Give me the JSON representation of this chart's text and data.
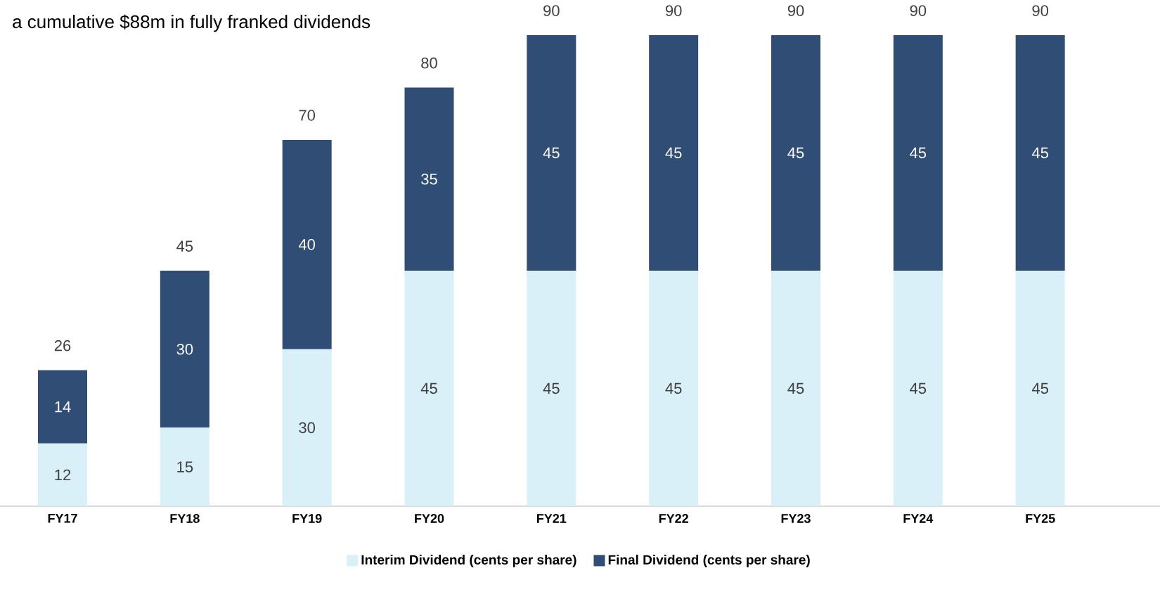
{
  "chart_data": {
    "type": "bar",
    "title": "a cumulative $88m in fully franked dividends",
    "stacked": true,
    "categories": [
      "FY17",
      "FY18",
      "FY19",
      "FY20",
      "FY21",
      "FY22",
      "FY23",
      "FY24",
      "FY25"
    ],
    "series": [
      {
        "name": "Interim Dividend (cents per share)",
        "color": "#d9f0f9",
        "values": [
          12,
          15,
          30,
          45,
          45,
          45,
          45,
          45,
          45
        ],
        "value_labels": [
          "12",
          "15",
          "30",
          "45",
          "45",
          "45",
          "45",
          "45",
          "45"
        ]
      },
      {
        "name": "Final Dividend (cents per share)",
        "color": "#2f4d75",
        "values": [
          14,
          30,
          40,
          35,
          45,
          45,
          45,
          45,
          45
        ],
        "value_labels": [
          "14",
          "30",
          "40",
          "35",
          "45",
          "45",
          "45",
          "45",
          "45"
        ]
      }
    ],
    "totals": [
      "26",
      "45",
      "70",
      "80",
      "90",
      "90",
      "90",
      "90",
      "90"
    ],
    "legend": "bottom"
  }
}
